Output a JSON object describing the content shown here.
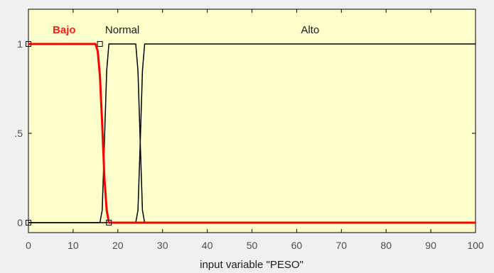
{
  "chart_data": {
    "type": "line",
    "xlabel": "input variable \"PESO\"",
    "ylabel": "",
    "xlim": [
      0,
      100
    ],
    "ylim": [
      0,
      1
    ],
    "x_ticks": [
      "0",
      "10",
      "20",
      "30",
      "40",
      "50",
      "60",
      "70",
      "80",
      "90",
      "100"
    ],
    "y_ticks": [
      "0",
      ".5",
      "1"
    ],
    "selected_series": "Bajo",
    "series": [
      {
        "name": "Bajo",
        "x": [
          0,
          15,
          15.5,
          16,
          16.5,
          17,
          17.5,
          18,
          100
        ],
        "y": [
          1,
          1,
          0.96,
          0.82,
          0.55,
          0.25,
          0.07,
          0,
          0
        ],
        "color": "#ff0000",
        "label_at": [
          8,
          1.08
        ]
      },
      {
        "name": "Normal",
        "x": [
          0,
          16,
          16.5,
          17,
          17.5,
          18,
          24,
          24.5,
          25,
          25.5,
          26,
          100
        ],
        "y": [
          0,
          0,
          0.07,
          0.45,
          0.85,
          1,
          1,
          0.85,
          0.45,
          0.07,
          0,
          0
        ],
        "color": "#000000",
        "label_at": [
          21,
          1.08
        ]
      },
      {
        "name": "Alto",
        "x": [
          0,
          24,
          24.5,
          25,
          25.5,
          26,
          100
        ],
        "y": [
          0,
          0,
          0.07,
          0.45,
          0.85,
          1,
          1
        ],
        "color": "#000000",
        "label_at": [
          63,
          1.08
        ]
      }
    ],
    "handles": [
      [
        0,
        1
      ],
      [
        16,
        1
      ],
      [
        0,
        0
      ],
      [
        18,
        0
      ]
    ],
    "colors": {
      "plot_bg": "#ffffcc",
      "page_bg": "#f0f0f0",
      "selected": "#ff0000",
      "line": "#000000",
      "axis": "#808080"
    }
  }
}
